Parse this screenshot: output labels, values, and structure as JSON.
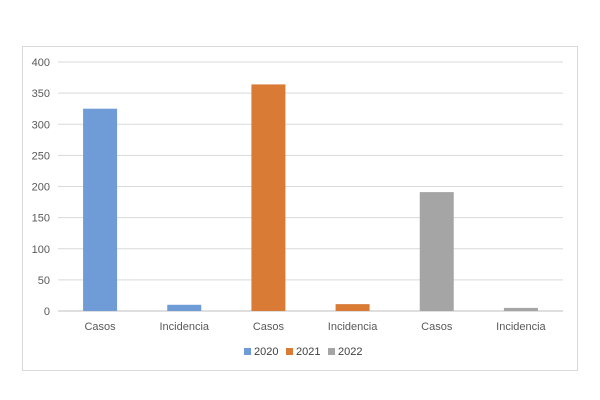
{
  "chart_data": {
    "type": "bar",
    "x_tick_labels": [
      "Casos",
      "Incidencia",
      "Casos",
      "Incidencia",
      "Casos",
      "Incidencia"
    ],
    "bars": [
      {
        "label": "Casos",
        "series": "2020",
        "value": 325
      },
      {
        "label": "Incidencia",
        "series": "2020",
        "value": 10
      },
      {
        "label": "Casos",
        "series": "2021",
        "value": 364
      },
      {
        "label": "Incidencia",
        "series": "2021",
        "value": 11
      },
      {
        "label": "Casos",
        "series": "2022",
        "value": 191
      },
      {
        "label": "Incidencia",
        "series": "2022",
        "value": 5
      }
    ],
    "series": [
      {
        "name": "2020",
        "color": "#6f9bd6"
      },
      {
        "name": "2021",
        "color": "#d97a35"
      },
      {
        "name": "2022",
        "color": "#a5a5a5"
      }
    ],
    "ylim": [
      0,
      400
    ],
    "yticks": [
      "0",
      "50",
      "100",
      "150",
      "200",
      "250",
      "300",
      "350",
      "400"
    ],
    "grid": true,
    "legend_position": "bottom",
    "title": "",
    "xlabel": "",
    "ylabel": ""
  }
}
